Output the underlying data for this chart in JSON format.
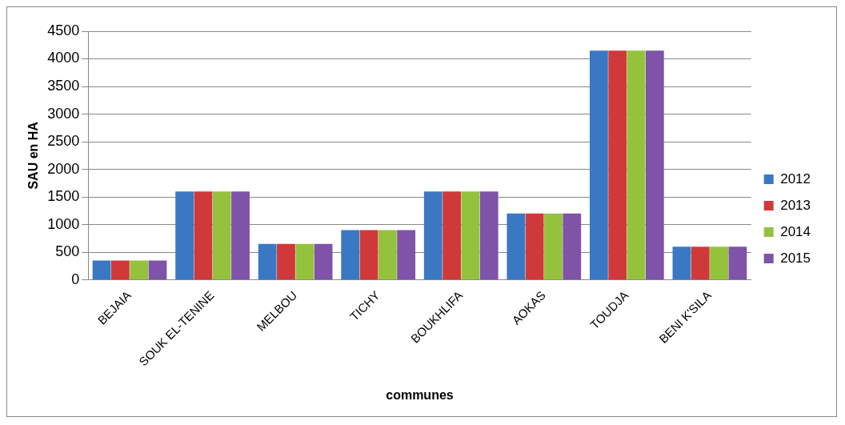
{
  "chart_data": {
    "type": "bar",
    "xlabel": "communes",
    "ylabel": "SAU en HA",
    "categories": [
      "BEJAIA",
      "SOUK EL-TENINE",
      "MELBOU",
      "TICHY",
      "BOUKHLIFA",
      "AOKAS",
      "TOUDJA",
      "BENI K'SILA"
    ],
    "series": [
      {
        "name": "2012",
        "color": "#3a78c4",
        "values": [
          350,
          1600,
          650,
          900,
          1600,
          1200,
          4150,
          600
        ]
      },
      {
        "name": "2013",
        "color": "#d0393a",
        "values": [
          350,
          1600,
          650,
          900,
          1600,
          1200,
          4150,
          600
        ]
      },
      {
        "name": "2014",
        "color": "#94c23c",
        "values": [
          350,
          1600,
          650,
          900,
          1600,
          1200,
          4150,
          600
        ]
      },
      {
        "name": "2015",
        "color": "#7e53a8",
        "values": [
          350,
          1600,
          650,
          900,
          1600,
          1200,
          4150,
          600
        ]
      }
    ],
    "ylim": [
      0,
      4500
    ],
    "yticks": [
      0,
      500,
      1000,
      1500,
      2000,
      2500,
      3000,
      3500,
      4000,
      4500
    ],
    "grid": "y",
    "legend": "right"
  }
}
